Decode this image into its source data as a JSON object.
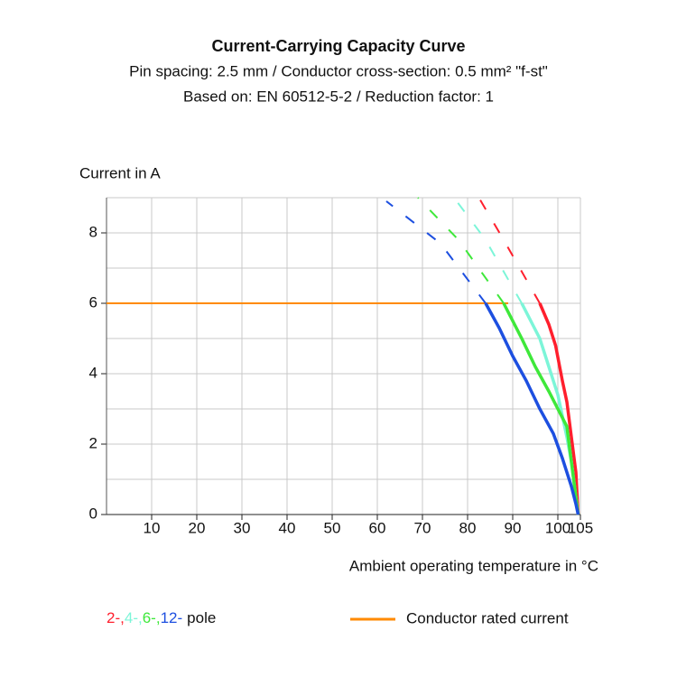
{
  "chart_data": {
    "type": "line",
    "title": "Current-Carrying Capacity Curve",
    "subtitle": [
      "Pin spacing: 2.5 mm / Conductor cross-section: 0.5 mm² \"f-st\"",
      "Based on: EN 60512-5-2 / Reduction factor: 1"
    ],
    "ylabel": "Current in A",
    "xlabel": "Ambient operating temperature in °C",
    "xlim": [
      0,
      105
    ],
    "xticks": [
      10,
      20,
      30,
      40,
      50,
      60,
      70,
      80,
      90,
      100,
      105
    ],
    "ylim": [
      0,
      9
    ],
    "yticks": [
      0,
      2,
      4,
      6,
      8
    ],
    "yminor": [
      1,
      3,
      5,
      7,
      9
    ],
    "grid": true,
    "series": [
      {
        "name": "2-",
        "color": "#ff1f2d",
        "x": [
          96,
          98,
          99.5,
          101,
          102,
          103,
          104,
          104.5
        ],
        "values": [
          6,
          5.4,
          4.8,
          3.8,
          3.2,
          2.2,
          1.2,
          0
        ],
        "extrapolated_x": [
          96,
          88,
          82.5
        ],
        "extrapolated_values": [
          6,
          7.8,
          9
        ]
      },
      {
        "name": "4-",
        "color": "#7cf5d8",
        "x": [
          92,
          94,
          96,
          98,
          100,
          101,
          102,
          103,
          104,
          104.5
        ],
        "values": [
          6,
          5.5,
          5.0,
          4.2,
          3.4,
          2.8,
          2.2,
          1.5,
          0.5,
          0
        ],
        "extrapolated_x": [
          92,
          84,
          77
        ],
        "extrapolated_values": [
          6,
          7.8,
          9
        ]
      },
      {
        "name": "6-",
        "color": "#3ee83a",
        "x": [
          88,
          90,
          92,
          95,
          98,
          100,
          102,
          103,
          104,
          104.5
        ],
        "values": [
          6,
          5.5,
          5.0,
          4.2,
          3.5,
          3.0,
          2.5,
          1.5,
          0.5,
          0
        ],
        "extrapolated_x": [
          88,
          78,
          69
        ],
        "extrapolated_values": [
          6,
          7.8,
          9
        ]
      },
      {
        "name": "12-",
        "color": "#1d4fe0",
        "x": [
          84,
          87,
          90,
          93,
          96,
          99,
          101,
          103,
          104,
          104.5
        ],
        "values": [
          6,
          5.3,
          4.5,
          3.8,
          3.0,
          2.3,
          1.6,
          0.8,
          0.3,
          0
        ],
        "extrapolated_x": [
          84,
          74,
          62
        ],
        "extrapolated_values": [
          6,
          7.7,
          8.9
        ]
      }
    ],
    "legend_separator": ",",
    "legend_suffix": "pole",
    "reference": {
      "name": "Conductor rated current",
      "color": "#ff8a00",
      "x": [
        0,
        89
      ],
      "values": [
        6,
        6
      ]
    }
  }
}
